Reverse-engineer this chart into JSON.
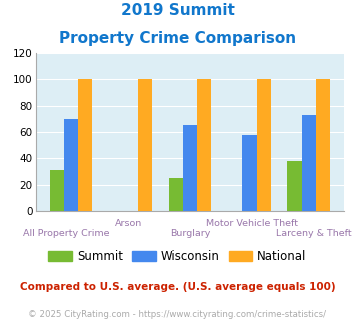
{
  "title_line1": "2019 Summit",
  "title_line2": "Property Crime Comparison",
  "categories": [
    "All Property Crime",
    "Arson",
    "Burglary",
    "Motor Vehicle Theft",
    "Larceny & Theft"
  ],
  "summit_values": [
    31,
    0,
    25,
    0,
    38
  ],
  "wisconsin_values": [
    70,
    0,
    65,
    58,
    73
  ],
  "national_values": [
    100,
    100,
    100,
    100,
    100
  ],
  "summit_color": "#77bb33",
  "wisconsin_color": "#4488ee",
  "national_color": "#ffaa22",
  "ylim": [
    0,
    120
  ],
  "yticks": [
    0,
    20,
    40,
    60,
    80,
    100,
    120
  ],
  "label_color": "#9977aa",
  "background_color": "#ddeef5",
  "title_color": "#1177cc",
  "footnote1": "Compared to U.S. average. (U.S. average equals 100)",
  "footnote2": "© 2025 CityRating.com - https://www.cityrating.com/crime-statistics/",
  "footnote1_color": "#cc2200",
  "footnote2_color": "#aaaaaa",
  "legend_labels": [
    "Summit",
    "Wisconsin",
    "National"
  ]
}
